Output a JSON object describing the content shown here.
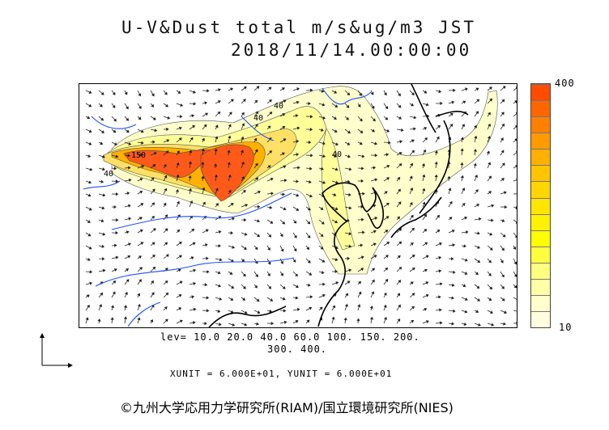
{
  "title": {
    "line1": "U-V&Dust total m/s&ug/m3 JST",
    "line2": "2018/11/14.00:00:00"
  },
  "colorbar": {
    "max_label": "400",
    "min_label": "10",
    "colors": [
      "#ffffe0",
      "#ffffcc",
      "#ffffa8",
      "#ffff80",
      "#ffff40",
      "#ffff00",
      "#fff200",
      "#ffe600",
      "#ffd600",
      "#ffc400",
      "#ffb000",
      "#ff9a00",
      "#ff8000",
      "#ff6600",
      "#ff4c00"
    ]
  },
  "contour_labels": [
    "150",
    "40",
    "40",
    "40",
    "40"
  ],
  "levels": {
    "line1": "lev= 10.0 20.0 40.0 60.0 100. 150. 200.",
    "line2": "300. 400."
  },
  "units": "XUNIT = 6.000E+01, YUNIT = 6.000E+01",
  "copyright": "©九州大学応用力学研究所(RIAM)/国立環境研究所(NIES)",
  "map": {
    "field": "dust concentration",
    "wind_vectors": true,
    "colors": {
      "coast": "#000000",
      "rivers": "#1f4fff",
      "borders": "#333333"
    }
  }
}
